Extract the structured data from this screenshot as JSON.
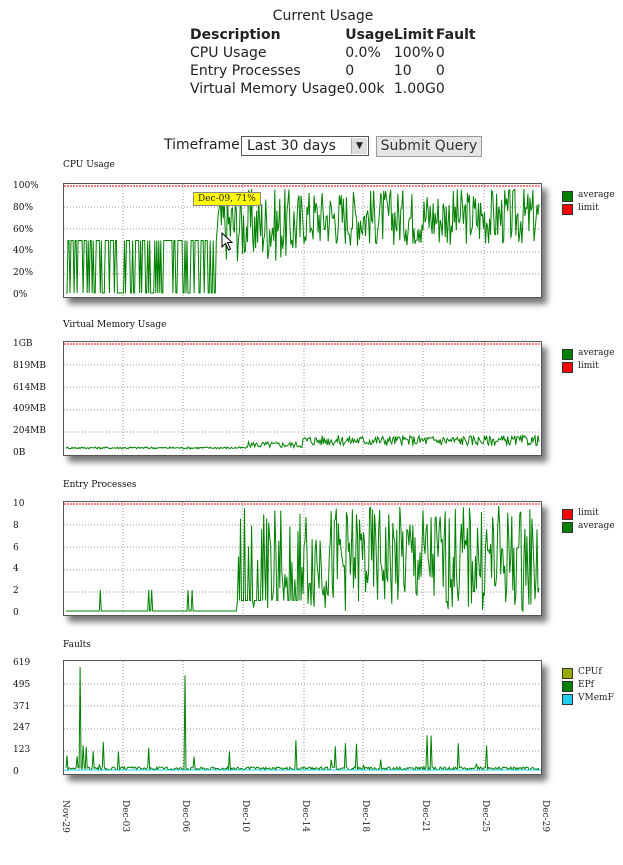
{
  "usage": {
    "title": "Current Usage",
    "headers": [
      "Description",
      "Usage",
      "Limit",
      "Fault"
    ],
    "rows": [
      [
        "CPU Usage",
        "0.0%",
        "100%",
        "0"
      ],
      [
        "Entry Processes",
        "0",
        "10",
        "0"
      ],
      [
        "Virtual Memory Usage",
        "0.00k",
        "1.00G",
        "0"
      ]
    ]
  },
  "timeframe": {
    "label": "Timeframe:",
    "selected": "Last 30 days",
    "submit": "Submit Query"
  },
  "tooltip": "Dec-09, 71%",
  "x_labels": [
    "Nov-29",
    "Dec-03",
    "Dec-06",
    "Dec-10",
    "Dec-14",
    "Dec-18",
    "Dec-21",
    "Dec-25",
    "Dec-29"
  ],
  "colors": {
    "average": "#008000",
    "limit": "#ff0000",
    "cpuf": "#99aa00",
    "epf": "#008000",
    "vmemf": "#22ccee"
  },
  "charts": [
    {
      "title": "CPU Usage",
      "yticks": [
        "100%",
        "80%",
        "60%",
        "40%",
        "20%",
        "0%"
      ],
      "legend": [
        {
          "label": "average",
          "color": "#008000"
        },
        {
          "label": "limit",
          "color": "#ff0000"
        }
      ]
    },
    {
      "title": "Virtual Memory Usage",
      "yticks": [
        "1GB",
        "819MB",
        "614MB",
        "409MB",
        "204MB",
        "0B"
      ],
      "legend": [
        {
          "label": "average",
          "color": "#008000"
        },
        {
          "label": "limit",
          "color": "#ff0000"
        }
      ]
    },
    {
      "title": "Entry Processes",
      "yticks": [
        "10",
        "8",
        "6",
        "4",
        "2",
        "0"
      ],
      "legend": [
        {
          "label": "limit",
          "color": "#ff0000"
        },
        {
          "label": "average",
          "color": "#008000"
        }
      ]
    },
    {
      "title": "Faults",
      "yticks": [
        "619",
        "495",
        "371",
        "247",
        "123",
        "0"
      ],
      "legend": [
        {
          "label": "CPUf",
          "color": "#99aa00"
        },
        {
          "label": "EPf",
          "color": "#008000"
        },
        {
          "label": "VMemF",
          "color": "#22ccee"
        }
      ]
    }
  ],
  "chart_data": [
    {
      "type": "line",
      "title": "CPU Usage",
      "ylim": [
        0,
        100
      ],
      "unit": "%",
      "series": [
        {
          "name": "average"
        },
        {
          "name": "limit",
          "values": [
            100
          ]
        }
      ]
    },
    {
      "type": "line",
      "title": "Virtual Memory Usage",
      "ylim": [
        0,
        1024
      ],
      "unit": "MB",
      "series": [
        {
          "name": "average"
        },
        {
          "name": "limit",
          "values": [
            1024
          ]
        }
      ]
    },
    {
      "type": "line",
      "title": "Entry Processes",
      "ylim": [
        0,
        10
      ],
      "series": [
        {
          "name": "average"
        },
        {
          "name": "limit",
          "values": [
            10
          ]
        }
      ]
    },
    {
      "type": "line",
      "title": "Faults",
      "ylim": [
        0,
        619
      ],
      "series": [
        {
          "name": "CPUf"
        },
        {
          "name": "EPf"
        },
        {
          "name": "VMemF"
        }
      ]
    }
  ]
}
